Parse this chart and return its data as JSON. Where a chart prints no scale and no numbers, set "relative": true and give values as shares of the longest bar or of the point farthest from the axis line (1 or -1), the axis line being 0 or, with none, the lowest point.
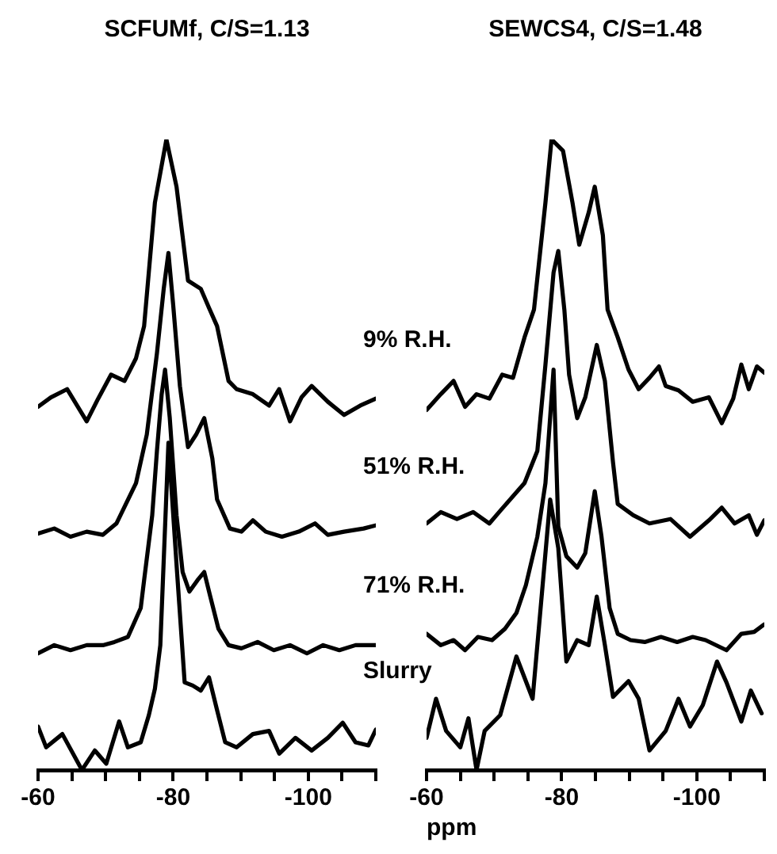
{
  "chart_data": [
    {
      "type": "line",
      "title": "SCFUMf, C/S=1.13",
      "relative": true,
      "xlim": [
        -60,
        -110
      ],
      "xticks": [
        -60,
        {
          "value": -65,
          "label": null
        },
        {
          "value": -70,
          "label": null
        },
        {
          "value": -75,
          "label": null
        },
        -80,
        {
          "value": -85,
          "label": null
        },
        {
          "value": -90,
          "label": null
        },
        {
          "value": -95,
          "label": null
        },
        -100,
        {
          "value": -105,
          "label": null
        },
        {
          "value": -110,
          "label": null
        }
      ],
      "series": [
        {
          "name": "9% R.H.",
          "color": "#000000",
          "x": [
            -60,
            -61.9,
            -64.3,
            -67.2,
            -68.9,
            -70.8,
            -72.8,
            -74.5,
            -75.7,
            -77.3,
            -79.0,
            -80.5,
            -82.2,
            -84.1,
            -85.3,
            -86.5,
            -88.2,
            -89.4,
            -91.8,
            -94.2,
            -95.7,
            -97.3,
            -99.0,
            -100.5,
            -102.9,
            -105.3,
            -107.7,
            -110
          ],
          "values": [
            0.576,
            0.591,
            0.604,
            0.553,
            0.589,
            0.627,
            0.617,
            0.653,
            0.704,
            0.9,
            1.0,
            0.925,
            0.776,
            0.763,
            0.733,
            0.704,
            0.617,
            0.604,
            0.596,
            0.578,
            0.604,
            0.553,
            0.591,
            0.609,
            0.584,
            0.563,
            0.578,
            0.589
          ]
        },
        {
          "name": "51% R.H.",
          "color": "#000000",
          "x": [
            -60,
            -62.4,
            -64.8,
            -67.2,
            -69.6,
            -71.6,
            -74.5,
            -76.1,
            -77.6,
            -78.6,
            -79.3,
            -80.0,
            -81.0,
            -82.2,
            -83.4,
            -84.6,
            -85.8,
            -86.5,
            -88.4,
            -90.1,
            -91.8,
            -93.7,
            -96.1,
            -98.6,
            -101.0,
            -102.9,
            -105.3,
            -108.2,
            -110
          ],
          "values": [
            0.375,
            0.383,
            0.37,
            0.378,
            0.373,
            0.391,
            0.455,
            0.532,
            0.661,
            0.763,
            0.82,
            0.738,
            0.609,
            0.512,
            0.532,
            0.558,
            0.494,
            0.429,
            0.383,
            0.378,
            0.396,
            0.378,
            0.37,
            0.378,
            0.391,
            0.373,
            0.378,
            0.383,
            0.388
          ]
        },
        {
          "name": "71% R.H.",
          "color": "#000000",
          "x": [
            -60,
            -62.4,
            -64.8,
            -67.2,
            -69.6,
            -71.3,
            -73.3,
            -75.2,
            -75.7,
            -76.9,
            -77.6,
            -78.3,
            -78.8,
            -79.5,
            -80.5,
            -81.4,
            -82.4,
            -83.6,
            -84.6,
            -85.5,
            -86.7,
            -88.2,
            -90.1,
            -92.5,
            -94.9,
            -97.3,
            -99.8,
            -102.2,
            -104.6,
            -107.0,
            -110
          ],
          "values": [
            0.185,
            0.198,
            0.19,
            0.198,
            0.198,
            0.203,
            0.211,
            0.257,
            0.301,
            0.404,
            0.506,
            0.596,
            0.635,
            0.558,
            0.404,
            0.314,
            0.283,
            0.301,
            0.314,
            0.275,
            0.224,
            0.198,
            0.193,
            0.203,
            0.19,
            0.198,
            0.185,
            0.198,
            0.19,
            0.198,
            0.198
          ]
        },
        {
          "name": "Slurry",
          "color": "#000000",
          "x": [
            -60,
            -61.2,
            -63.6,
            -66.5,
            -68.4,
            -70.1,
            -72.0,
            -73.3,
            -75.2,
            -76.4,
            -77.3,
            -78.1,
            -79.3,
            -80.5,
            -81.7,
            -82.9,
            -84.1,
            -85.3,
            -86.5,
            -87.7,
            -89.4,
            -91.8,
            -94.2,
            -95.7,
            -98.1,
            -100.5,
            -102.9,
            -105.1,
            -107.0,
            -108.9,
            -110
          ],
          "values": [
            0.069,
            0.036,
            0.057,
            0,
            0.031,
            0.01,
            0.077,
            0.036,
            0.044,
            0.087,
            0.129,
            0.198,
            0.519,
            0.326,
            0.139,
            0.134,
            0.126,
            0.147,
            0.095,
            0.044,
            0.036,
            0.057,
            0.062,
            0.026,
            0.051,
            0.031,
            0.051,
            0.075,
            0.044,
            0.039,
            0.064
          ]
        }
      ]
    },
    {
      "type": "line",
      "title": "SEWCS4, C/S=1.48",
      "xlabel": "ppm",
      "relative": true,
      "xlim": [
        -60,
        -110
      ],
      "xticks": [
        -60,
        {
          "value": -65,
          "label": null
        },
        {
          "value": -70,
          "label": null
        },
        {
          "value": -75,
          "label": null
        },
        -80,
        {
          "value": -85,
          "label": null
        },
        {
          "value": -90,
          "label": null
        },
        {
          "value": -95,
          "label": null
        },
        -100,
        {
          "value": -105,
          "label": null
        },
        {
          "value": -110,
          "label": null
        }
      ],
      "series": [
        {
          "color": "#000000",
          "x": [
            -60,
            -62.1,
            -64.0,
            -65.7,
            -67.4,
            -69.3,
            -71.2,
            -72.8,
            -74.5,
            -75.9,
            -77.6,
            -78.5,
            -80.2,
            -81.6,
            -82.6,
            -84.0,
            -84.9,
            -86.1,
            -86.8,
            -88.3,
            -89.9,
            -91.4,
            -93.0,
            -94.4,
            -95.4,
            -97.3,
            -99.4,
            -101.8,
            -103.7,
            -105.4,
            -106.6,
            -107.7,
            -108.9,
            -110
          ],
          "values": [
            0.571,
            0.596,
            0.617,
            0.576,
            0.596,
            0.589,
            0.627,
            0.622,
            0.686,
            0.73,
            0.9,
            1.0,
            0.982,
            0.9,
            0.833,
            0.884,
            0.925,
            0.848,
            0.73,
            0.686,
            0.635,
            0.604,
            0.622,
            0.64,
            0.609,
            0.602,
            0.584,
            0.591,
            0.55,
            0.589,
            0.643,
            0.604,
            0.64,
            0.63
          ]
        },
        {
          "color": "#000000",
          "x": [
            -60,
            -62.1,
            -64.5,
            -66.9,
            -69.3,
            -70.9,
            -74.5,
            -76.4,
            -77.6,
            -78.8,
            -79.5,
            -80.4,
            -81.1,
            -82.3,
            -83.5,
            -85.2,
            -86.4,
            -87.6,
            -88.3,
            -90.6,
            -93.0,
            -96.1,
            -99.0,
            -101.8,
            -103.7,
            -105.6,
            -107.7,
            -108.9,
            -110
          ],
          "values": [
            0.391,
            0.409,
            0.398,
            0.409,
            0.391,
            0.411,
            0.455,
            0.506,
            0.643,
            0.789,
            0.823,
            0.73,
            0.627,
            0.558,
            0.591,
            0.674,
            0.617,
            0.488,
            0.422,
            0.404,
            0.391,
            0.398,
            0.37,
            0.396,
            0.416,
            0.391,
            0.404,
            0.373,
            0.396
          ]
        },
        {
          "color": "#000000",
          "x": [
            -60,
            -62.1,
            -64.0,
            -65.7,
            -67.6,
            -69.7,
            -71.6,
            -73.3,
            -74.7,
            -76.4,
            -77.6,
            -78.8,
            -79.5,
            -80.7,
            -82.3,
            -83.5,
            -84.9,
            -85.9,
            -87.1,
            -88.3,
            -90.2,
            -92.3,
            -94.7,
            -97.1,
            -99.4,
            -101.3,
            -104.4,
            -106.6,
            -108.5,
            -110
          ],
          "values": [
            0.216,
            0.198,
            0.206,
            0.19,
            0.211,
            0.206,
            0.224,
            0.249,
            0.293,
            0.37,
            0.455,
            0.635,
            0.386,
            0.339,
            0.321,
            0.344,
            0.442,
            0.37,
            0.257,
            0.216,
            0.206,
            0.203,
            0.211,
            0.203,
            0.211,
            0.206,
            0.19,
            0.216,
            0.219,
            0.231
          ]
        },
        {
          "color": "#000000",
          "x": [
            -60,
            -61.4,
            -62.9,
            -65.0,
            -66.2,
            -67.4,
            -68.6,
            -70.9,
            -73.3,
            -75.7,
            -77.1,
            -78.3,
            -79.5,
            -80.7,
            -82.3,
            -84.0,
            -85.2,
            -86.4,
            -87.6,
            -89.9,
            -91.4,
            -93.0,
            -95.4,
            -97.3,
            -99.0,
            -100.9,
            -103.0,
            -104.4,
            -106.6,
            -108.0,
            -109.6
          ],
          "values": [
            0.051,
            0.113,
            0.062,
            0.036,
            0.082,
            0,
            0.062,
            0.087,
            0.18,
            0.113,
            0.283,
            0.429,
            0.352,
            0.172,
            0.206,
            0.198,
            0.275,
            0.198,
            0.116,
            0.141,
            0.113,
            0.031,
            0.062,
            0.113,
            0.069,
            0.103,
            0.172,
            0.139,
            0.077,
            0.126,
            0.09
          ]
        }
      ]
    }
  ]
}
